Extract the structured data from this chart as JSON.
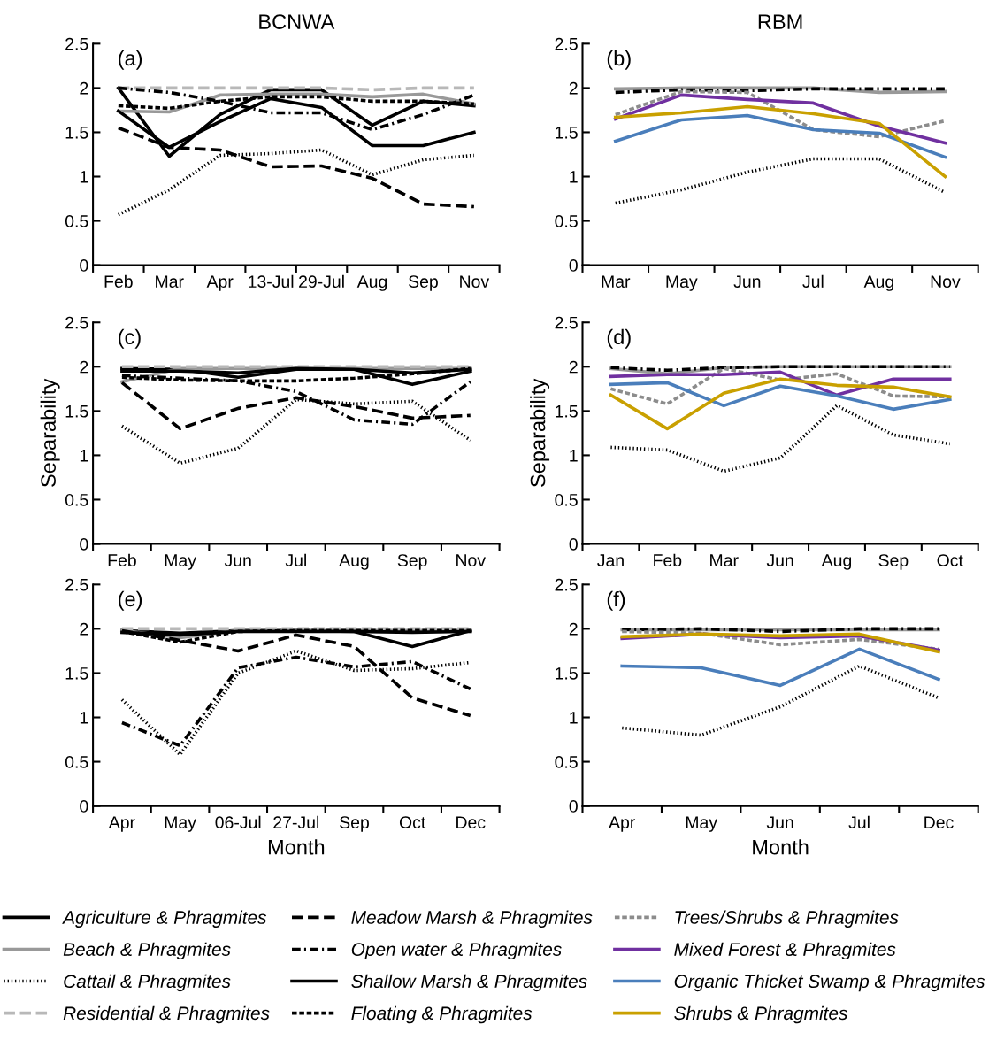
{
  "chart_data": [
    {
      "type": "line",
      "title": "BCNWA",
      "annotations": [
        "(a)"
      ],
      "categories": [
        "Feb",
        "Mar",
        "Apr",
        "13-Jul",
        "29-Jul",
        "Aug",
        "Sep",
        "Nov"
      ],
      "ylim": [
        0,
        2.5
      ],
      "yticks": [
        0,
        0.5,
        1,
        1.5,
        2,
        2.5
      ],
      "grid": false,
      "legend": "bottom",
      "series": [
        {
          "name": "Agriculture & Phragmites",
          "color": "#000000",
          "line_style": "solid",
          "values": [
            2.0,
            1.23,
            1.7,
            1.98,
            1.98,
            1.58,
            1.85,
            1.8
          ]
        },
        {
          "name": "Beach & Phragmites",
          "color": "#999999",
          "line_style": "solid",
          "values": [
            1.74,
            1.73,
            1.92,
            1.93,
            1.93,
            1.9,
            1.93,
            1.82
          ]
        },
        {
          "name": "Cattail & Phragmites",
          "color": "#000000",
          "line_style": "dotted",
          "values": [
            0.57,
            0.85,
            1.24,
            1.26,
            1.3,
            1.02,
            1.19,
            1.24
          ]
        },
        {
          "name": "Residential & Phragmites",
          "color": "#b8b8b8",
          "line_style": "longdash",
          "values": [
            2.0,
            2.0,
            2.0,
            2.0,
            2.0,
            1.98,
            2.0,
            2.0
          ]
        },
        {
          "name": "Meadow Marsh & Phragmites",
          "color": "#000000",
          "line_style": "longdash",
          "values": [
            1.55,
            1.33,
            1.3,
            1.11,
            1.12,
            0.98,
            0.69,
            0.66
          ]
        },
        {
          "name": "Open water & Phragmites",
          "color": "#000000",
          "line_style": "dashdot",
          "values": [
            2.0,
            1.95,
            1.85,
            1.72,
            1.72,
            1.53,
            1.7,
            1.92
          ]
        },
        {
          "name": "Shallow Marsh & Phragmites",
          "color": "#000000",
          "line_style": "solid",
          "values": [
            1.74,
            1.33,
            1.62,
            1.88,
            1.78,
            1.35,
            1.35,
            1.5
          ]
        },
        {
          "name": "Floating & Phragmites",
          "color": "#000000",
          "line_style": "dashed",
          "values": [
            1.8,
            1.77,
            1.85,
            1.9,
            1.9,
            1.85,
            1.85,
            1.82
          ]
        }
      ]
    },
    {
      "type": "line",
      "title": "RBM",
      "annotations": [
        "(b)"
      ],
      "categories": [
        "Mar",
        "May",
        "Jun",
        "Jul",
        "Aug",
        "Nov"
      ],
      "ylim": [
        0,
        2.5
      ],
      "yticks": [
        0,
        0.5,
        1,
        1.5,
        2,
        2.5
      ],
      "grid": false,
      "legend": "bottom",
      "series": [
        {
          "name": "Beach & Phragmites",
          "color": "#999999",
          "line_style": "solid",
          "values": [
            1.99,
            2.0,
            2.0,
            2.0,
            1.95,
            1.96
          ]
        },
        {
          "name": "Open water & Phragmites",
          "color": "#000000",
          "line_style": "dashdot",
          "values": [
            1.95,
            1.98,
            1.97,
            1.99,
            1.99,
            1.99
          ]
        },
        {
          "name": "Trees/Shrubs & Phragmites",
          "color": "#8c8c8c",
          "line_style": "dashed",
          "values": [
            1.7,
            1.96,
            1.95,
            1.53,
            1.45,
            1.63
          ]
        },
        {
          "name": "Mixed Forest & Phragmites",
          "color": "#7030a0",
          "line_style": "solid",
          "values": [
            1.65,
            1.92,
            1.87,
            1.83,
            1.57,
            1.38
          ]
        },
        {
          "name": "Organic Thicket Swamp & Phragmites",
          "color": "#4a7ebb",
          "line_style": "solid",
          "values": [
            1.4,
            1.64,
            1.69,
            1.53,
            1.49,
            1.22
          ]
        },
        {
          "name": "Shrubs & Phragmites",
          "color": "#c9a000",
          "line_style": "solid",
          "values": [
            1.67,
            1.72,
            1.79,
            1.71,
            1.6,
            1.0
          ]
        },
        {
          "name": "Cattail & Phragmites",
          "color": "#000000",
          "line_style": "dotted",
          "values": [
            0.7,
            0.85,
            1.05,
            1.2,
            1.2,
            0.82
          ]
        }
      ]
    },
    {
      "type": "line",
      "ylabel": "Separability",
      "annotations": [
        "(c)"
      ],
      "categories": [
        "Feb",
        "May",
        "Jun",
        "Jul",
        "Aug",
        "Sep",
        "Nov"
      ],
      "ylim": [
        0,
        2.5
      ],
      "yticks": [
        0,
        0.5,
        1,
        1.5,
        2,
        2.5
      ],
      "grid": false,
      "legend": "bottom",
      "series": [
        {
          "name": "Agriculture & Phragmites",
          "color": "#000000",
          "line_style": "solid",
          "values": [
            1.98,
            1.97,
            1.88,
            1.97,
            1.97,
            1.8,
            1.95
          ]
        },
        {
          "name": "Beach & Phragmites",
          "color": "#999999",
          "line_style": "solid",
          "values": [
            1.83,
            1.98,
            1.98,
            1.98,
            1.98,
            1.98,
            1.98
          ]
        },
        {
          "name": "Cattail & Phragmites",
          "color": "#000000",
          "line_style": "dotted",
          "values": [
            1.33,
            0.91,
            1.08,
            1.63,
            1.58,
            1.61,
            1.17
          ]
        },
        {
          "name": "Residential & Phragmites",
          "color": "#b8b8b8",
          "line_style": "longdash",
          "values": [
            2.0,
            2.0,
            2.0,
            2.0,
            2.0,
            2.0,
            2.0
          ]
        },
        {
          "name": "Meadow Marsh & Phragmites",
          "color": "#000000",
          "line_style": "longdash",
          "values": [
            1.82,
            1.3,
            1.53,
            1.65,
            1.55,
            1.42,
            1.45
          ]
        },
        {
          "name": "Open water & Phragmites",
          "color": "#000000",
          "line_style": "dashdot",
          "values": [
            1.9,
            1.87,
            1.84,
            1.72,
            1.4,
            1.35,
            1.83
          ]
        },
        {
          "name": "Shallow Marsh & Phragmites",
          "color": "#000000",
          "line_style": "solid",
          "values": [
            1.95,
            1.95,
            1.93,
            1.98,
            1.97,
            1.93,
            1.97
          ]
        },
        {
          "name": "Floating & Phragmites",
          "color": "#000000",
          "line_style": "dashed",
          "values": [
            1.88,
            1.85,
            1.84,
            1.84,
            1.87,
            1.92,
            1.98
          ]
        }
      ]
    },
    {
      "type": "line",
      "ylabel": "Separability",
      "annotations": [
        "(d)"
      ],
      "categories": [
        "Jan",
        "Feb",
        "Mar",
        "Jun",
        "Aug",
        "Sep",
        "Oct"
      ],
      "ylim": [
        0,
        2.5
      ],
      "yticks": [
        0,
        0.5,
        1,
        1.5,
        2,
        2.5
      ],
      "grid": false,
      "legend": "bottom",
      "series": [
        {
          "name": "Beach & Phragmites",
          "color": "#999999",
          "line_style": "solid",
          "values": [
            1.98,
            1.92,
            1.99,
            2.0,
            2.0,
            2.0,
            2.0
          ]
        },
        {
          "name": "Open water & Phragmites",
          "color": "#000000",
          "line_style": "dashdot",
          "values": [
            1.99,
            1.96,
            1.99,
            2.0,
            2.0,
            2.0,
            2.0
          ]
        },
        {
          "name": "Trees/Shrubs & Phragmites",
          "color": "#8c8c8c",
          "line_style": "dashed",
          "values": [
            1.75,
            1.58,
            1.98,
            1.85,
            1.92,
            1.67,
            1.66
          ]
        },
        {
          "name": "Mixed Forest & Phragmites",
          "color": "#7030a0",
          "line_style": "solid",
          "values": [
            1.89,
            1.91,
            1.91,
            1.94,
            1.68,
            1.86,
            1.86
          ]
        },
        {
          "name": "Organic Thicket Swamp & Phragmites",
          "color": "#4a7ebb",
          "line_style": "solid",
          "values": [
            1.8,
            1.82,
            1.56,
            1.78,
            1.67,
            1.52,
            1.63
          ]
        },
        {
          "name": "Shrubs & Phragmites",
          "color": "#c9a000",
          "line_style": "solid",
          "values": [
            1.68,
            1.3,
            1.7,
            1.86,
            1.79,
            1.77,
            1.66
          ]
        },
        {
          "name": "Cattail & Phragmites",
          "color": "#000000",
          "line_style": "dotted",
          "values": [
            1.09,
            1.06,
            0.82,
            0.97,
            1.56,
            1.23,
            1.13
          ]
        }
      ]
    },
    {
      "type": "line",
      "xlabel": "Month",
      "annotations": [
        "(e)"
      ],
      "categories": [
        "Apr",
        "May",
        "06-Jul",
        "27-Jul",
        "Sep",
        "Oct",
        "Dec"
      ],
      "ylim": [
        0,
        2.5
      ],
      "yticks": [
        0,
        0.5,
        1,
        1.5,
        2,
        2.5
      ],
      "grid": false,
      "legend": "bottom",
      "series": [
        {
          "name": "Agriculture & Phragmites",
          "color": "#000000",
          "line_style": "solid",
          "values": [
            1.98,
            1.95,
            1.98,
            1.98,
            1.97,
            1.8,
            1.98
          ]
        },
        {
          "name": "Beach & Phragmites",
          "color": "#999999",
          "line_style": "solid",
          "values": [
            1.98,
            1.9,
            1.98,
            1.98,
            1.98,
            1.98,
            1.98
          ]
        },
        {
          "name": "Cattail & Phragmites",
          "color": "#000000",
          "line_style": "dotted",
          "values": [
            1.2,
            0.58,
            1.5,
            1.75,
            1.53,
            1.55,
            1.62
          ]
        },
        {
          "name": "Residential & Phragmites",
          "color": "#b8b8b8",
          "line_style": "longdash",
          "values": [
            2.0,
            2.0,
            2.0,
            2.0,
            2.0,
            2.0,
            2.0
          ]
        },
        {
          "name": "Meadow Marsh & Phragmites",
          "color": "#000000",
          "line_style": "longdash",
          "values": [
            1.98,
            1.87,
            1.75,
            1.93,
            1.8,
            1.22,
            1.02
          ]
        },
        {
          "name": "Open water & Phragmites",
          "color": "#000000",
          "line_style": "dashdot",
          "values": [
            0.94,
            0.68,
            1.56,
            1.68,
            1.57,
            1.63,
            1.32
          ]
        },
        {
          "name": "Shallow Marsh & Phragmites",
          "color": "#000000",
          "line_style": "solid",
          "values": [
            1.96,
            1.93,
            1.97,
            1.97,
            1.97,
            1.96,
            1.97
          ]
        },
        {
          "name": "Floating & Phragmites",
          "color": "#000000",
          "line_style": "dashed",
          "values": [
            1.97,
            1.85,
            1.97,
            1.98,
            1.98,
            1.98,
            1.98
          ]
        }
      ]
    },
    {
      "type": "line",
      "xlabel": "Month",
      "annotations": [
        "(f)"
      ],
      "categories": [
        "Apr",
        "May",
        "Jun",
        "Jul",
        "Dec"
      ],
      "ylim": [
        0,
        2.5
      ],
      "yticks": [
        0,
        0.5,
        1,
        1.5,
        2,
        2.5
      ],
      "grid": false,
      "legend": "bottom",
      "series": [
        {
          "name": "Beach & Phragmites",
          "color": "#999999",
          "line_style": "solid",
          "values": [
            1.99,
            1.99,
            1.99,
            1.99,
            1.99
          ]
        },
        {
          "name": "Open water & Phragmites",
          "color": "#000000",
          "line_style": "dashdot",
          "values": [
            1.99,
            2.0,
            1.97,
            2.0,
            2.0
          ]
        },
        {
          "name": "Trees/Shrubs & Phragmites",
          "color": "#8c8c8c",
          "line_style": "dashed",
          "values": [
            1.97,
            1.95,
            1.82,
            1.88,
            1.77
          ]
        },
        {
          "name": "Mixed Forest & Phragmites",
          "color": "#7030a0",
          "line_style": "solid",
          "values": [
            1.89,
            1.94,
            1.9,
            1.92,
            1.76
          ]
        },
        {
          "name": "Organic Thicket Swamp & Phragmites",
          "color": "#4a7ebb",
          "line_style": "solid",
          "values": [
            1.58,
            1.56,
            1.36,
            1.77,
            1.43
          ]
        },
        {
          "name": "Shrubs & Phragmites",
          "color": "#c9a000",
          "line_style": "solid",
          "values": [
            1.91,
            1.94,
            1.92,
            1.94,
            1.74
          ]
        },
        {
          "name": "Cattail & Phragmites",
          "color": "#000000",
          "line_style": "dotted",
          "values": [
            0.88,
            0.8,
            1.12,
            1.58,
            1.22
          ]
        }
      ]
    }
  ]
}
